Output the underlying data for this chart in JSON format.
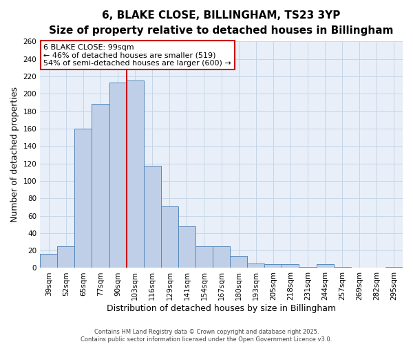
{
  "title": "6, BLAKE CLOSE, BILLINGHAM, TS23 3YP",
  "subtitle": "Size of property relative to detached houses in Billingham",
  "xlabel": "Distribution of detached houses by size in Billingham",
  "ylabel": "Number of detached properties",
  "bar_labels": [
    "39sqm",
    "52sqm",
    "65sqm",
    "77sqm",
    "90sqm",
    "103sqm",
    "116sqm",
    "129sqm",
    "141sqm",
    "154sqm",
    "167sqm",
    "180sqm",
    "193sqm",
    "205sqm",
    "218sqm",
    "231sqm",
    "244sqm",
    "257sqm",
    "269sqm",
    "282sqm",
    "295sqm"
  ],
  "bar_values": [
    16,
    25,
    160,
    188,
    213,
    215,
    117,
    71,
    48,
    25,
    25,
    14,
    5,
    4,
    4,
    1,
    4,
    1,
    0,
    0,
    1
  ],
  "bar_color": "#BFCFE7",
  "bar_edge_color": "#5588BB",
  "vline_color": "#CC0000",
  "annotation_title": "6 BLAKE CLOSE: 99sqm",
  "annotation_line1": "← 46% of detached houses are smaller (519)",
  "annotation_line2": "54% of semi-detached houses are larger (600) →",
  "annotation_box_edge_color": "#CC0000",
  "ylim_max": 260,
  "yticks": [
    0,
    20,
    40,
    60,
    80,
    100,
    120,
    140,
    160,
    180,
    200,
    220,
    240,
    260
  ],
  "footer1": "Contains HM Land Registry data © Crown copyright and database right 2025.",
  "footer2": "Contains public sector information licensed under the Open Government Licence v3.0.",
  "plot_bg_color": "#E8EFF8",
  "fig_bg_color": "#FFFFFF",
  "grid_color": "#C5D5E8",
  "title_fontsize": 11,
  "subtitle_fontsize": 9.5,
  "ylabel_fontsize": 9,
  "xlabel_fontsize": 9,
  "tick_fontsize": 7.5,
  "annot_fontsize": 8,
  "footer_fontsize": 6
}
